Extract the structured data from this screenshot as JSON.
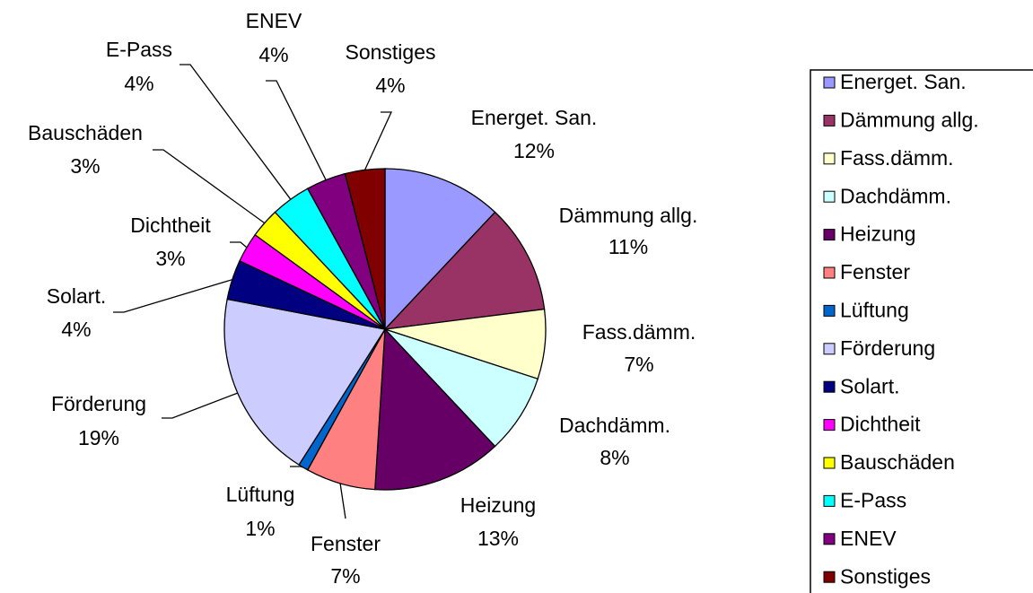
{
  "chart_data": {
    "type": "pie",
    "categories": [
      "Energet. San.",
      "Dämmung allg.",
      "Fass.dämm.",
      "Dachdämm.",
      "Heizung",
      "Fenster",
      "Lüftung",
      "Förderung",
      "Solart.",
      "Dichtheit",
      "Bauschäden",
      "E-Pass",
      "ENEV",
      "Sonstiges"
    ],
    "values": [
      12,
      11,
      7,
      8,
      13,
      7,
      1,
      19,
      4,
      3,
      3,
      4,
      4,
      4
    ],
    "value_labels": [
      "12%",
      "11%",
      "7%",
      "8%",
      "13%",
      "7%",
      "1%",
      "19%",
      "4%",
      "3%",
      "3%",
      "4%",
      "4%",
      "4%"
    ],
    "colors": [
      "#9999ff",
      "#993366",
      "#ffffcc",
      "#ccffff",
      "#660066",
      "#ff8080",
      "#0066cc",
      "#ccccff",
      "#000080",
      "#ff00ff",
      "#ffff00",
      "#00ffff",
      "#800080",
      "#800000"
    ],
    "legend": "right"
  }
}
